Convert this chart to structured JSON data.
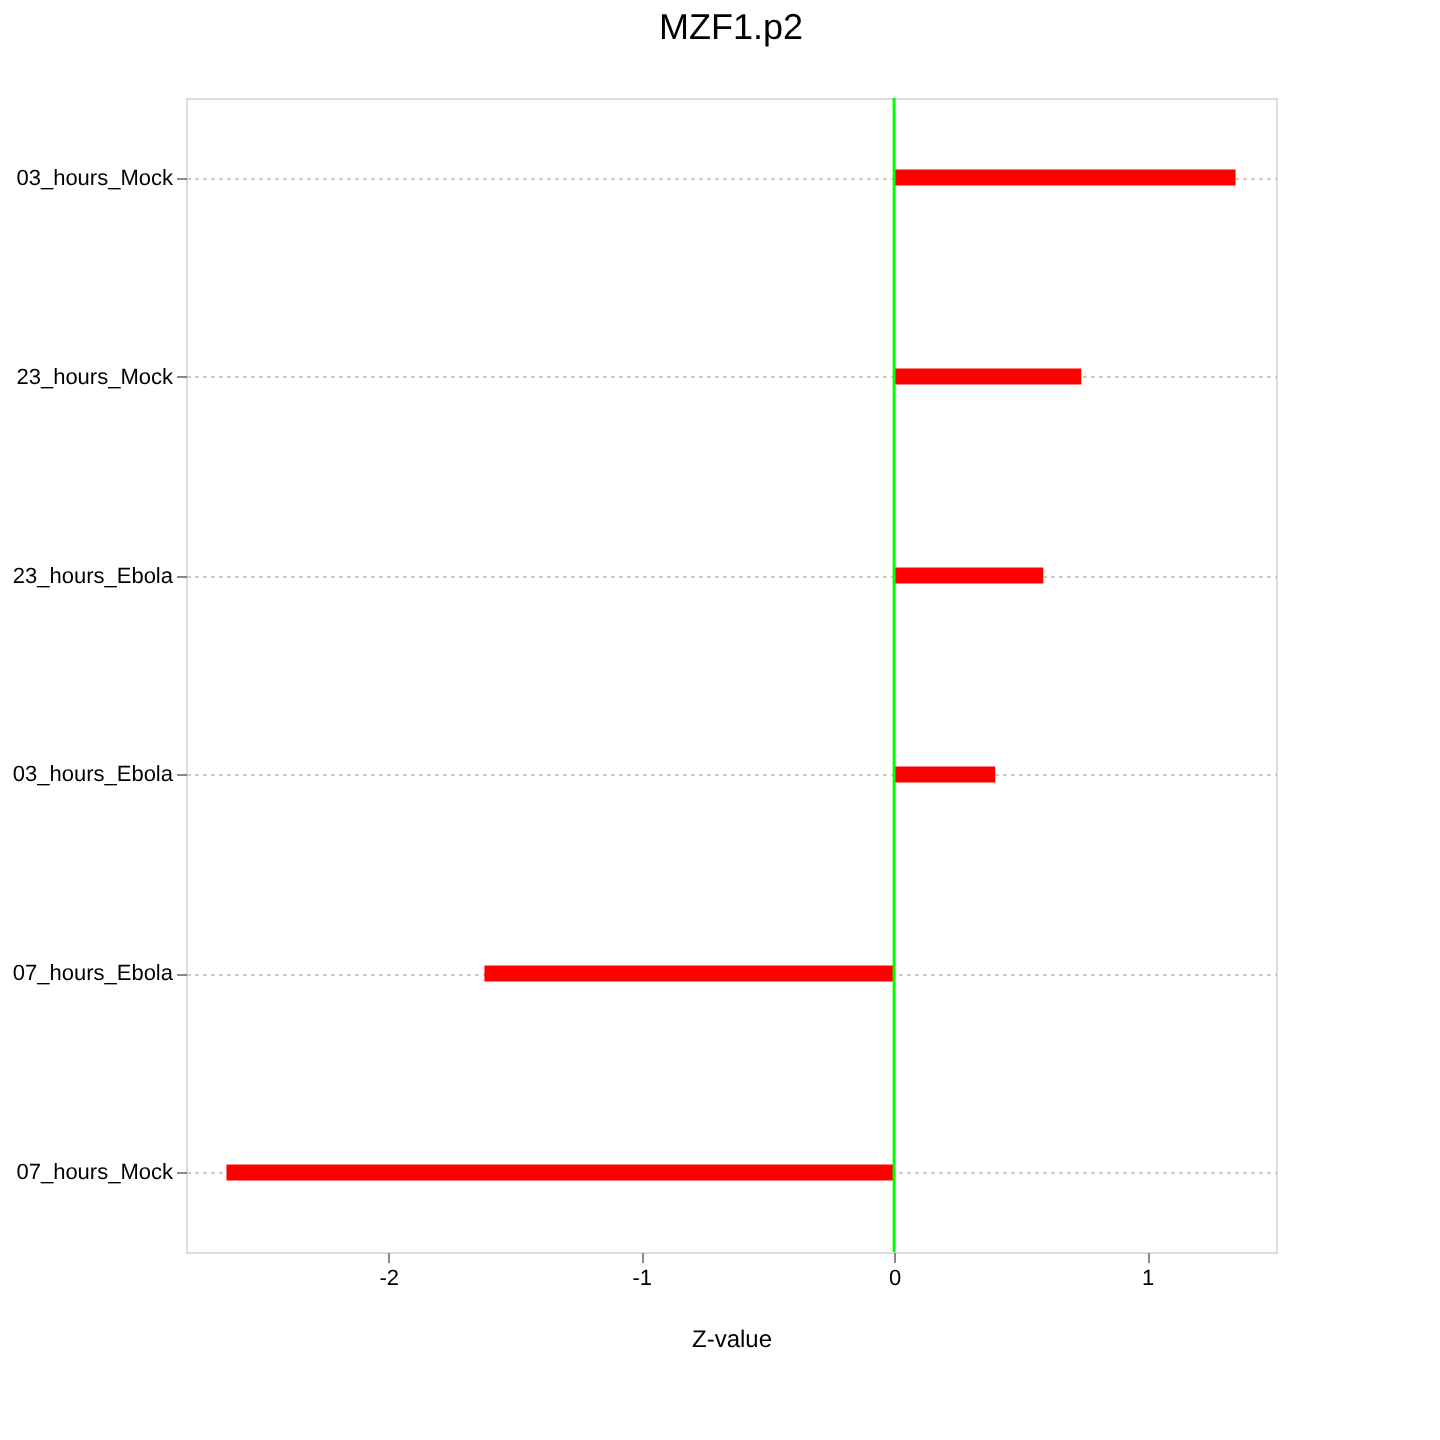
{
  "chart_data": {
    "type": "bar",
    "orientation": "horizontal",
    "title": "MZF1.p2",
    "xlabel": "Z-value",
    "categories": [
      "03_hours_Mock",
      "23_hours_Mock",
      "23_hours_Ebola",
      "03_hours_Ebola",
      "07_hours_Ebola",
      "07_hours_Mock"
    ],
    "values": [
      1.35,
      0.74,
      0.59,
      0.4,
      -1.62,
      -2.64
    ],
    "color": "#ff0000",
    "xlim": [
      -2.8,
      1.51
    ],
    "xticks": [
      -2,
      -1,
      0,
      1
    ],
    "grid": "y",
    "ref_lines": [
      {
        "axis": "x",
        "value": 0,
        "color": "#00ff00"
      }
    ]
  }
}
